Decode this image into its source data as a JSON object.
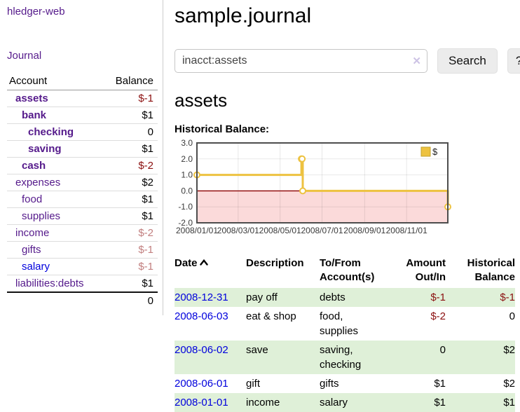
{
  "colors": {
    "accent_purple": "#551a8b",
    "link_blue": "#0000dd",
    "negative_strong": "#8b0f0f",
    "negative_dim": "#c27f7f",
    "row_stripe_green": "#dff0d8",
    "series_gold": "#edc240",
    "below_zero_pink": "#fbdada",
    "zero_line_red": "#8b0000"
  },
  "sidebar": {
    "brand": "hledger-web",
    "journal_link": "Journal",
    "accounts_table": {
      "headers": {
        "account": "Account",
        "balance": "Balance"
      },
      "rows": [
        {
          "name": "assets",
          "balance": "$-1",
          "depth": 1,
          "bold": true,
          "neg": "strong"
        },
        {
          "name": "bank",
          "balance": "$1",
          "depth": 2,
          "bold": true
        },
        {
          "name": "checking",
          "balance": "0",
          "depth": 3,
          "bold": true
        },
        {
          "name": "saving",
          "balance": "$1",
          "depth": 3,
          "bold": true
        },
        {
          "name": "cash",
          "balance": "$-2",
          "depth": 2,
          "bold": true,
          "neg": "strong"
        },
        {
          "name": "expenses",
          "balance": "$2",
          "depth": 1
        },
        {
          "name": "food",
          "balance": "$1",
          "depth": 2
        },
        {
          "name": "supplies",
          "balance": "$1",
          "depth": 2
        },
        {
          "name": "income",
          "balance": "$-2",
          "depth": 1,
          "neg": "dim"
        },
        {
          "name": "gifts",
          "balance": "$-1",
          "depth": 2,
          "neg": "dim"
        },
        {
          "name": "salary",
          "balance": "$-1",
          "depth": 2,
          "neg": "dim",
          "link_color": "blue"
        },
        {
          "name": "liabilities:debts",
          "balance": "$1",
          "depth": 1
        }
      ],
      "total": "0"
    }
  },
  "main": {
    "title": "sample.journal",
    "search": {
      "value": "inacct:assets",
      "clear_icon": "✕",
      "button_label": "Search",
      "help_label": "?"
    },
    "account_heading": "assets",
    "chart_label": "Historical Balance:",
    "register_table": {
      "headers": {
        "date": "Date",
        "description": "Description",
        "accounts": "To/From Account(s)",
        "amount": "Amount Out/In",
        "balance": "Historical Balance"
      },
      "rows": [
        {
          "date": "2008-12-31",
          "description": "pay off",
          "accounts": "debts",
          "amount": "$-1",
          "balance": "$-1"
        },
        {
          "date": "2008-06-03",
          "description": "eat & shop",
          "accounts": "food, supplies",
          "amount": "$-2",
          "balance": "0"
        },
        {
          "date": "2008-06-02",
          "description": "save",
          "accounts": "saving, checking",
          "amount": "0",
          "balance": "$2"
        },
        {
          "date": "2008-06-01",
          "description": "gift",
          "accounts": "gifts",
          "amount": "$1",
          "balance": "$2"
        },
        {
          "date": "2008-01-01",
          "description": "income",
          "accounts": "salary",
          "amount": "$1",
          "balance": "$1"
        }
      ]
    }
  },
  "chart_data": {
    "type": "line",
    "title": "Historical Balance:",
    "step": true,
    "series": [
      {
        "name": "$",
        "color": "#edc240",
        "points": [
          [
            "2008-01-01",
            1
          ],
          [
            "2008-06-01",
            2
          ],
          [
            "2008-06-02",
            2
          ],
          [
            "2008-06-03",
            0
          ],
          [
            "2008-12-31",
            -1
          ]
        ]
      }
    ],
    "x_range": [
      "2008-01-01",
      "2008-12-31"
    ],
    "ylim": [
      -2,
      3
    ],
    "y_ticks": [
      3.0,
      2.0,
      1.0,
      0.0,
      -1.0,
      -2.0
    ],
    "y_tick_labels": [
      "3.0",
      "2.0",
      "1.0",
      "0.0",
      "-1.0",
      "-2.0"
    ],
    "x_ticks": [
      {
        "date": "2008-01-01",
        "label": "2008/01/01"
      },
      {
        "date": "2008-03-01",
        "label": "2008/03/01"
      },
      {
        "date": "2008-05-01",
        "label": "2008/05/01"
      },
      {
        "date": "2008-07-01",
        "label": "2008/07/01"
      },
      {
        "date": "2008-09-01",
        "label": "2008/09/01"
      },
      {
        "date": "2008-11-01",
        "label": "2008/11/01"
      }
    ],
    "grid": true,
    "legend_position": "top-right",
    "below_zero_fill": "#fbdada",
    "zero_line_color": "#8b0000"
  }
}
